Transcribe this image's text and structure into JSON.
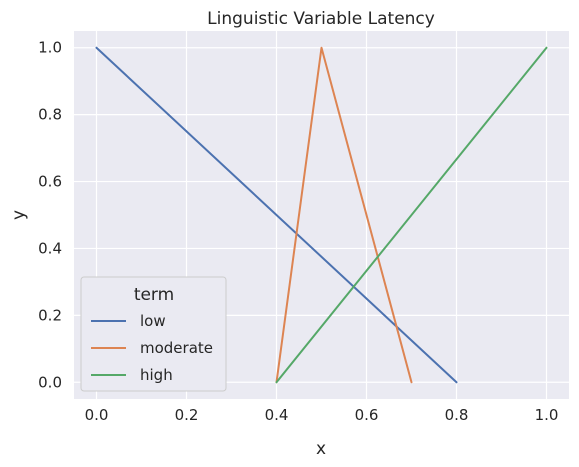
{
  "chart_data": {
    "type": "line",
    "title": "Linguistic Variable Latency",
    "xlabel": "x",
    "ylabel": "y",
    "xlim": [
      -0.05,
      1.05
    ],
    "ylim": [
      -0.05,
      1.05
    ],
    "xticks": [
      "0.0",
      "0.2",
      "0.4",
      "0.6",
      "0.8",
      "1.0"
    ],
    "yticks": [
      "0.0",
      "0.2",
      "0.4",
      "0.6",
      "0.8",
      "1.0"
    ],
    "grid": true,
    "legend": {
      "title": "term",
      "placement": "lower-left"
    },
    "series": [
      {
        "name": "low",
        "color": "#4c72b0",
        "x": [
          0.0,
          0.8
        ],
        "y": [
          1.0,
          0.0
        ]
      },
      {
        "name": "moderate",
        "color": "#dd8452",
        "x": [
          0.4,
          0.5,
          0.7
        ],
        "y": [
          0.0,
          1.0,
          0.0
        ]
      },
      {
        "name": "high",
        "color": "#55a868",
        "x": [
          0.4,
          1.0
        ],
        "y": [
          0.0,
          1.0
        ]
      }
    ]
  },
  "colors": {
    "plot_background": "#eaeaf2",
    "grid": "#ffffff",
    "text": "#262626"
  }
}
